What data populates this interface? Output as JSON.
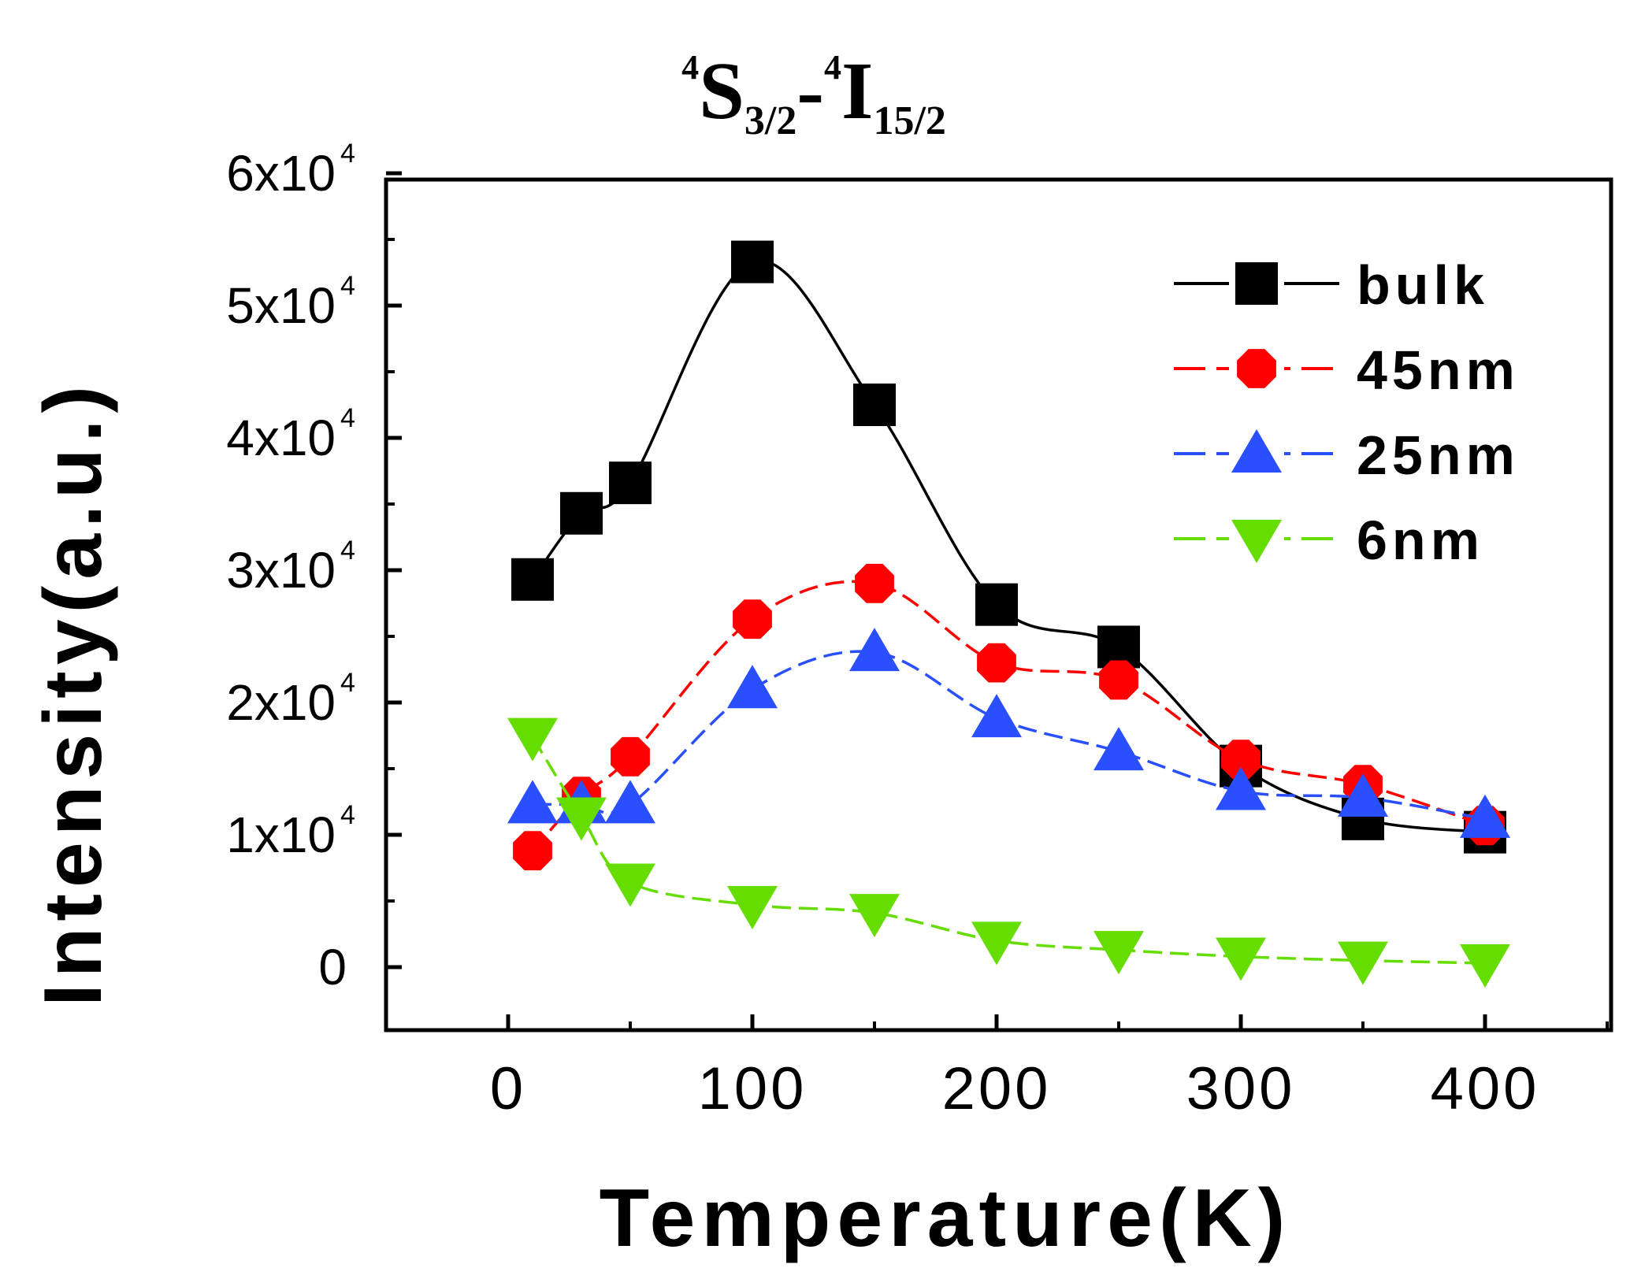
{
  "chart_data": {
    "type": "line",
    "title": {
      "part1_sup": "4",
      "part1_main": "S",
      "part1_sub": "3/2",
      "separator": "-",
      "part2_sup": "4",
      "part2_main": "I",
      "part2_sub": "15/2"
    },
    "xlabel": "Temperature(K)",
    "ylabel": "Intensity(a.u.)",
    "xlim": [
      -50,
      450
    ],
    "ylim": [
      -5000,
      60000
    ],
    "x_ticks": [
      "0",
      "100",
      "200",
      "300",
      "400"
    ],
    "x_tick_values": [
      0,
      100,
      200,
      300,
      400
    ],
    "y_ticks": [
      {
        "value": 0,
        "mantissa": "0",
        "exp": ""
      },
      {
        "value": 10000,
        "mantissa": "1x10",
        "exp": "4"
      },
      {
        "value": 20000,
        "mantissa": "2x10",
        "exp": "4"
      },
      {
        "value": 30000,
        "mantissa": "3x10",
        "exp": "4"
      },
      {
        "value": 40000,
        "mantissa": "4x10",
        "exp": "4"
      },
      {
        "value": 50000,
        "mantissa": "5x10",
        "exp": "4"
      },
      {
        "value": 60000,
        "mantissa": "6x10",
        "exp": "4"
      }
    ],
    "legend_position": "top-right",
    "x": [
      10,
      30,
      50,
      100,
      150,
      200,
      250,
      300,
      350,
      400
    ],
    "series": [
      {
        "name": "bulk",
        "color": "#000000",
        "marker": "square",
        "dash": "solid",
        "values": [
          29300,
          34300,
          36600,
          53300,
          42500,
          27400,
          24200,
          15200,
          11200,
          10200
        ]
      },
      {
        "name": "45nm",
        "color": "#ff0000",
        "marker": "circle",
        "dash": "dashed",
        "values": [
          8800,
          12900,
          15900,
          26300,
          29000,
          23000,
          21700,
          15700,
          13800,
          10700
        ]
      },
      {
        "name": "25nm",
        "color": "#2a4fff",
        "marker": "triangle-up",
        "dash": "dashed",
        "values": [
          12300,
          12300,
          12300,
          21000,
          23800,
          18800,
          16300,
          13300,
          12800,
          11200
        ]
      },
      {
        "name": "6nm",
        "color": "#66dd00",
        "marker": "triangle-down",
        "dash": "dashed",
        "values": [
          17400,
          11400,
          6400,
          4700,
          4100,
          2000,
          1300,
          800,
          500,
          300
        ]
      }
    ]
  }
}
